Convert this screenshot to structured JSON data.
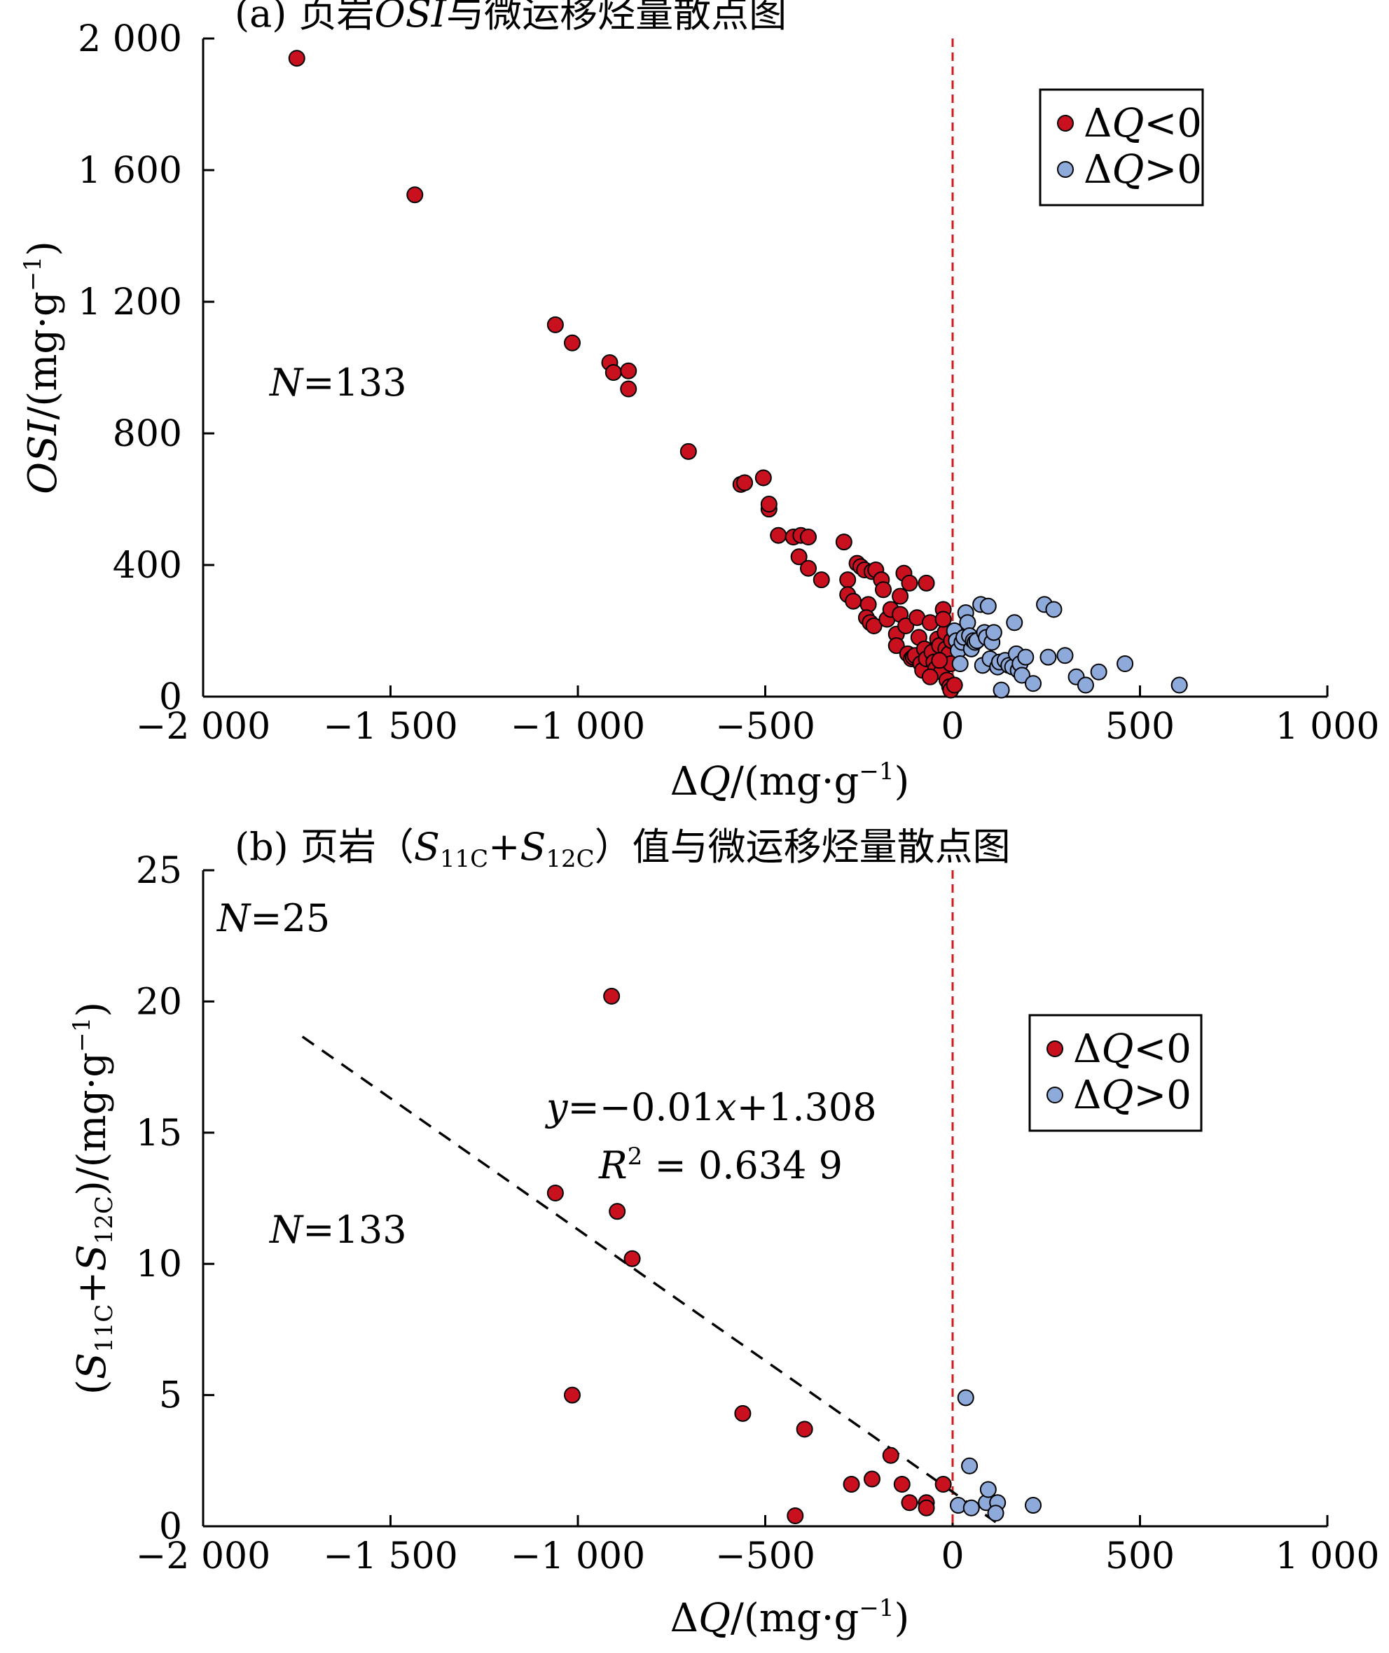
{
  "colors": {
    "negative": "#c8101e",
    "positive": "#8eaadb",
    "refline": "#d11a1a",
    "fit": "#000000"
  },
  "chart_data": [
    {
      "type": "scatter",
      "panel_label": "(a)",
      "title": "(a) 页岩OSI与微运移烃量散点图",
      "xlabel": "ΔQ/(mg·g⁻¹)",
      "ylabel": "OSI/(mg·g⁻¹)",
      "xlim": [
        -2000,
        1000
      ],
      "ylim": [
        0,
        2000
      ],
      "xticks": [
        -2000,
        -1500,
        -1000,
        -500,
        0,
        500,
        1000
      ],
      "xtick_labels": [
        "−2 000",
        "−1 500",
        "−1 000",
        "−500",
        "0",
        "500",
        "1 000"
      ],
      "yticks": [
        0,
        400,
        800,
        1200,
        1600,
        2000
      ],
      "ytick_labels": [
        "0",
        "400",
        "800",
        "1 200",
        "1 600",
        "2 000"
      ],
      "ref_line_x": 0,
      "annotation": "N=133",
      "legend": {
        "position": "top-right",
        "entries": [
          "ΔQ<0",
          "ΔQ>0"
        ]
      },
      "grid": false,
      "series": [
        {
          "name": "ΔQ<0",
          "points": [
            [
              -1750,
              1940
            ],
            [
              -1435,
              1525
            ],
            [
              -1060,
              1130
            ],
            [
              -1015,
              1075
            ],
            [
              -915,
              1015
            ],
            [
              -905,
              985
            ],
            [
              -865,
              990
            ],
            [
              -865,
              935
            ],
            [
              -705,
              745
            ],
            [
              -565,
              645
            ],
            [
              -555,
              650
            ],
            [
              -505,
              665
            ],
            [
              -490,
              570
            ],
            [
              -490,
              585
            ],
            [
              -465,
              490
            ],
            [
              -425,
              485
            ],
            [
              -405,
              490
            ],
            [
              -385,
              485
            ],
            [
              -410,
              425
            ],
            [
              -385,
              390
            ],
            [
              -350,
              355
            ],
            [
              -290,
              470
            ],
            [
              -280,
              355
            ],
            [
              -280,
              310
            ],
            [
              -265,
              290
            ],
            [
              -255,
              405
            ],
            [
              -245,
              395
            ],
            [
              -235,
              385
            ],
            [
              -225,
              280
            ],
            [
              -215,
              380
            ],
            [
              -230,
              240
            ],
            [
              -220,
              225
            ],
            [
              -210,
              215
            ],
            [
              -205,
              385
            ],
            [
              -190,
              355
            ],
            [
              -185,
              325
            ],
            [
              -175,
              235
            ],
            [
              -165,
              265
            ],
            [
              -150,
              190
            ],
            [
              -150,
              155
            ],
            [
              -140,
              250
            ],
            [
              -140,
              305
            ],
            [
              -130,
              375
            ],
            [
              -125,
              215
            ],
            [
              -120,
              130
            ],
            [
              -115,
              345
            ],
            [
              -110,
              115
            ],
            [
              -105,
              120
            ],
            [
              -100,
              125
            ],
            [
              -95,
              240
            ],
            [
              -90,
              180
            ],
            [
              -85,
              100
            ],
            [
              -80,
              80
            ],
            [
              -75,
              145
            ],
            [
              -70,
              345
            ],
            [
              -70,
              115
            ],
            [
              -60,
              225
            ],
            [
              -55,
              135
            ],
            [
              -50,
              105
            ],
            [
              -45,
              85
            ],
            [
              -40,
              175
            ],
            [
              -35,
              155
            ],
            [
              -30,
              75
            ],
            [
              -25,
              265
            ],
            [
              -20,
              195
            ],
            [
              -18,
              145
            ],
            [
              -15,
              50
            ],
            [
              -12,
              120
            ],
            [
              -10,
              130
            ],
            [
              -8,
              30
            ],
            [
              -5,
              100
            ],
            [
              -3,
              170
            ],
            [
              -25,
              235
            ],
            [
              -35,
              110
            ],
            [
              -60,
              60
            ],
            [
              -5,
              20
            ],
            [
              5,
              35
            ]
          ]
        },
        {
          "name": "ΔQ>0",
          "points": [
            [
              5,
              200
            ],
            [
              10,
              170
            ],
            [
              15,
              140
            ],
            [
              20,
              100
            ],
            [
              25,
              165
            ],
            [
              30,
              180
            ],
            [
              35,
              255
            ],
            [
              40,
              225
            ],
            [
              45,
              185
            ],
            [
              50,
              145
            ],
            [
              55,
              170
            ],
            [
              60,
              165
            ],
            [
              65,
              170
            ],
            [
              75,
              280
            ],
            [
              80,
              95
            ],
            [
              85,
              195
            ],
            [
              90,
              180
            ],
            [
              95,
              275
            ],
            [
              100,
              115
            ],
            [
              105,
              165
            ],
            [
              110,
              195
            ],
            [
              120,
              90
            ],
            [
              125,
              105
            ],
            [
              130,
              20
            ],
            [
              140,
              110
            ],
            [
              150,
              95
            ],
            [
              160,
              90
            ],
            [
              165,
              225
            ],
            [
              170,
              130
            ],
            [
              175,
              80
            ],
            [
              180,
              100
            ],
            [
              185,
              65
            ],
            [
              195,
              120
            ],
            [
              215,
              40
            ],
            [
              245,
              280
            ],
            [
              255,
              120
            ],
            [
              270,
              265
            ],
            [
              300,
              125
            ],
            [
              330,
              60
            ],
            [
              355,
              35
            ],
            [
              390,
              75
            ],
            [
              460,
              100
            ],
            [
              605,
              35
            ]
          ]
        }
      ]
    },
    {
      "type": "scatter",
      "panel_label": "(b)",
      "title": "(b) 页岩（S11C+S12C）值与微运移烃量散点图",
      "xlabel": "ΔQ/(mg·g⁻¹)",
      "ylabel": "(S11C+S12C)/(mg·g⁻¹)",
      "xlim": [
        -2000,
        1000
      ],
      "ylim": [
        0,
        25
      ],
      "xticks": [
        -2000,
        -1500,
        -1000,
        -500,
        0,
        500,
        1000
      ],
      "xtick_labels": [
        "−2 000",
        "−1 500",
        "−1 000",
        "−500",
        "0",
        "500",
        "1 000"
      ],
      "yticks": [
        0,
        5,
        10,
        15,
        20,
        25
      ],
      "ytick_labels": [
        "0",
        "5",
        "10",
        "15",
        "20",
        "25"
      ],
      "ref_line_x": 0,
      "annotations": [
        "N=25",
        "N=133"
      ],
      "fit": {
        "equation": "y=−0.01x+1.308",
        "r2": "R² = 0.634 9",
        "slope": -0.01,
        "intercept": 1.308,
        "x_range": [
          -1735,
          115
        ]
      },
      "legend": {
        "position": "right",
        "entries": [
          "ΔQ<0",
          "ΔQ>0"
        ]
      },
      "grid": false,
      "series": [
        {
          "name": "ΔQ<0",
          "points": [
            [
              -910,
              20.2
            ],
            [
              -1060,
              12.7
            ],
            [
              -895,
              12.0
            ],
            [
              -855,
              10.2
            ],
            [
              -1015,
              5.0
            ],
            [
              -560,
              4.3
            ],
            [
              -395,
              3.7
            ],
            [
              -165,
              2.7
            ],
            [
              -270,
              1.6
            ],
            [
              -215,
              1.8
            ],
            [
              -135,
              1.6
            ],
            [
              -25,
              1.6
            ],
            [
              -115,
              0.9
            ],
            [
              -70,
              0.9
            ],
            [
              -70,
              0.7
            ],
            [
              -420,
              0.4
            ]
          ]
        },
        {
          "name": "ΔQ>0",
          "points": [
            [
              35,
              4.9
            ],
            [
              45,
              2.3
            ],
            [
              15,
              0.8
            ],
            [
              50,
              0.7
            ],
            [
              90,
              0.9
            ],
            [
              95,
              1.4
            ],
            [
              120,
              0.9
            ],
            [
              115,
              0.5
            ],
            [
              215,
              0.8
            ]
          ]
        }
      ]
    }
  ]
}
